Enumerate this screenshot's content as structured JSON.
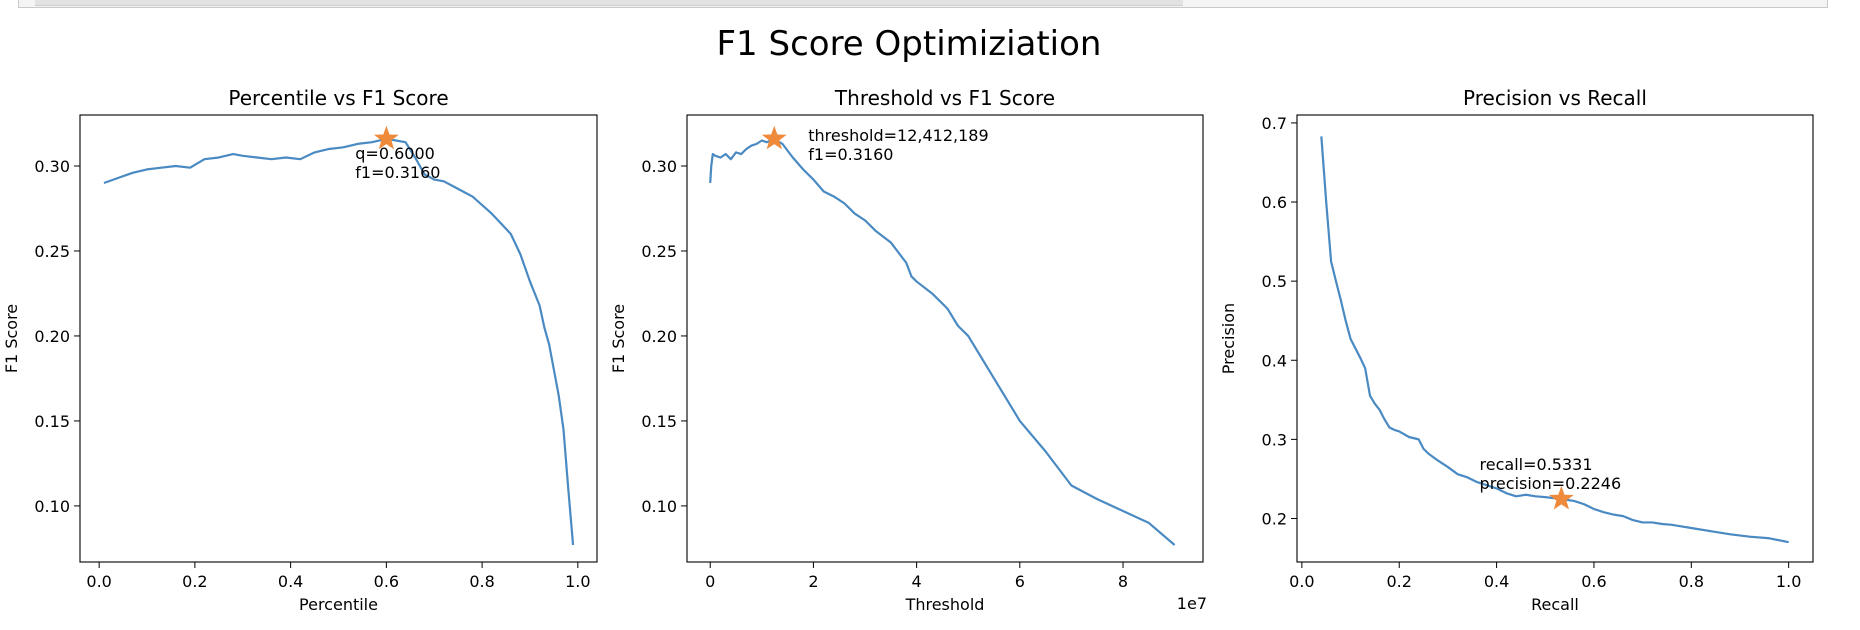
{
  "figure": {
    "suptitle": "F1 Score Optimiziation"
  },
  "chart_data": [
    {
      "type": "line",
      "title": "Percentile vs F1 Score",
      "xlabel": "Percentile",
      "ylabel": "F1 Score",
      "xlim": [
        -0.04,
        1.04
      ],
      "ylim": [
        0.067,
        0.33
      ],
      "xticks": [
        0.0,
        0.2,
        0.4,
        0.6,
        0.8,
        1.0
      ],
      "xtick_labels": [
        "0.0",
        "0.2",
        "0.4",
        "0.6",
        "0.8",
        "1.0"
      ],
      "yticks": [
        0.1,
        0.15,
        0.2,
        0.25,
        0.3
      ],
      "ytick_labels": [
        "0.10",
        "0.15",
        "0.20",
        "0.25",
        "0.30"
      ],
      "x_offset_label": "",
      "series": [
        {
          "color": "#4a8ac2",
          "x": [
            0.01,
            0.04,
            0.07,
            0.1,
            0.13,
            0.16,
            0.19,
            0.22,
            0.25,
            0.28,
            0.3,
            0.33,
            0.36,
            0.39,
            0.42,
            0.45,
            0.48,
            0.51,
            0.54,
            0.57,
            0.6,
            0.62,
            0.64,
            0.66,
            0.68,
            0.7,
            0.72,
            0.74,
            0.76,
            0.78,
            0.8,
            0.82,
            0.84,
            0.86,
            0.88,
            0.9,
            0.92,
            0.93,
            0.94,
            0.95,
            0.96,
            0.97,
            0.98,
            0.99
          ],
          "y": [
            0.29,
            0.293,
            0.296,
            0.298,
            0.299,
            0.3,
            0.299,
            0.304,
            0.305,
            0.307,
            0.306,
            0.305,
            0.304,
            0.305,
            0.304,
            0.308,
            0.31,
            0.311,
            0.313,
            0.314,
            0.316,
            0.315,
            0.314,
            0.305,
            0.295,
            0.292,
            0.291,
            0.288,
            0.285,
            0.282,
            0.277,
            0.272,
            0.266,
            0.26,
            0.248,
            0.232,
            0.218,
            0.205,
            0.195,
            0.18,
            0.165,
            0.145,
            0.11,
            0.077
          ]
        }
      ],
      "highlight": {
        "x": 0.6,
        "y": 0.316,
        "color": "#ef8a3a"
      },
      "annotation": [
        "q=0.6000",
        "f1=0.3160"
      ],
      "annotation_anchor": {
        "x": 0.535,
        "y": 0.304
      }
    },
    {
      "type": "line",
      "title": "Threshold vs F1 Score",
      "xlabel": "Threshold",
      "ylabel": "F1 Score",
      "xlim": [
        -0.45,
        9.55
      ],
      "ylim": [
        0.067,
        0.33
      ],
      "xticks": [
        0,
        2,
        4,
        6,
        8
      ],
      "xtick_labels": [
        "0",
        "2",
        "4",
        "6",
        "8"
      ],
      "yticks": [
        0.1,
        0.15,
        0.2,
        0.25,
        0.3
      ],
      "ytick_labels": [
        "0.10",
        "0.15",
        "0.20",
        "0.25",
        "0.30"
      ],
      "x_offset_label": "1e7",
      "series": [
        {
          "color": "#4a8ac2",
          "x": [
            0.0,
            0.02,
            0.05,
            0.1,
            0.2,
            0.3,
            0.4,
            0.5,
            0.6,
            0.7,
            0.8,
            0.9,
            1.0,
            1.1,
            1.24,
            1.4,
            1.6,
            1.8,
            2.0,
            2.2,
            2.4,
            2.6,
            2.8,
            3.0,
            3.2,
            3.5,
            3.8,
            3.9,
            4.0,
            4.3,
            4.6,
            4.8,
            5.0,
            5.2,
            5.5,
            6.0,
            6.5,
            7.0,
            7.5,
            8.0,
            8.5,
            9.0
          ],
          "y": [
            0.29,
            0.3,
            0.307,
            0.306,
            0.305,
            0.307,
            0.304,
            0.308,
            0.307,
            0.31,
            0.312,
            0.313,
            0.315,
            0.314,
            0.316,
            0.313,
            0.305,
            0.298,
            0.292,
            0.285,
            0.282,
            0.278,
            0.272,
            0.268,
            0.262,
            0.255,
            0.243,
            0.235,
            0.232,
            0.225,
            0.216,
            0.206,
            0.2,
            0.19,
            0.175,
            0.15,
            0.132,
            0.112,
            0.104,
            0.097,
            0.09,
            0.077
          ]
        }
      ],
      "highlight": {
        "x": 1.2412189,
        "y": 0.316,
        "color": "#ef8a3a"
      },
      "annotation": [
        "threshold=12,412,189",
        "f1=0.3160"
      ],
      "annotation_anchor": {
        "x": 1.9,
        "y": 0.3148
      }
    },
    {
      "type": "line",
      "title": "Precision vs Recall",
      "xlabel": "Recall",
      "ylabel": "Precision",
      "xlim": [
        -0.01,
        1.05
      ],
      "ylim": [
        0.145,
        0.71
      ],
      "xticks": [
        0.0,
        0.2,
        0.4,
        0.6,
        0.8,
        1.0
      ],
      "xtick_labels": [
        "0.0",
        "0.2",
        "0.4",
        "0.6",
        "0.8",
        "1.0"
      ],
      "yticks": [
        0.2,
        0.3,
        0.4,
        0.5,
        0.6,
        0.7
      ],
      "ytick_labels": [
        "0.2",
        "0.3",
        "0.4",
        "0.5",
        "0.6",
        "0.7"
      ],
      "x_offset_label": "",
      "series": [
        {
          "color": "#4a8ac2",
          "x": [
            0.04,
            0.05,
            0.06,
            0.07,
            0.08,
            0.09,
            0.1,
            0.11,
            0.12,
            0.13,
            0.14,
            0.15,
            0.16,
            0.17,
            0.18,
            0.19,
            0.2,
            0.22,
            0.24,
            0.25,
            0.26,
            0.28,
            0.3,
            0.32,
            0.34,
            0.36,
            0.38,
            0.4,
            0.42,
            0.44,
            0.46,
            0.48,
            0.5,
            0.5331,
            0.56,
            0.58,
            0.6,
            0.62,
            0.64,
            0.66,
            0.68,
            0.7,
            0.72,
            0.74,
            0.76,
            0.78,
            0.8,
            0.84,
            0.88,
            0.92,
            0.96,
            1.0
          ],
          "y": [
            0.683,
            0.6,
            0.525,
            0.5,
            0.476,
            0.45,
            0.427,
            0.415,
            0.403,
            0.39,
            0.355,
            0.345,
            0.337,
            0.325,
            0.315,
            0.312,
            0.31,
            0.303,
            0.3,
            0.288,
            0.282,
            0.273,
            0.265,
            0.256,
            0.252,
            0.246,
            0.242,
            0.238,
            0.232,
            0.228,
            0.23,
            0.228,
            0.227,
            0.2246,
            0.222,
            0.218,
            0.212,
            0.208,
            0.205,
            0.203,
            0.198,
            0.195,
            0.195,
            0.193,
            0.192,
            0.19,
            0.188,
            0.184,
            0.18,
            0.177,
            0.175,
            0.17
          ]
        }
      ],
      "highlight": {
        "x": 0.5331,
        "y": 0.2246,
        "color": "#ef8a3a"
      },
      "annotation": [
        "recall=0.5331",
        "precision=0.2246"
      ],
      "annotation_anchor": {
        "x": 0.365,
        "y": 0.2615
      }
    }
  ]
}
